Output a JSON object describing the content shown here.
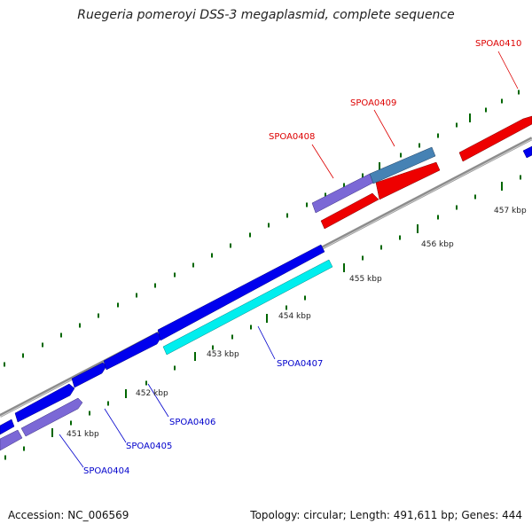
{
  "title": "Ruegeria pomeroyi DSS-3 megaplasmid, complete sequence",
  "footer": {
    "accession": "Accession: NC_006569",
    "summary": "Topology: circular; Length: 491,611 bp; Genes: 444"
  },
  "kbp_labels": [
    "451 kbp",
    "452 kbp",
    "453 kbp",
    "454 kbp",
    "455 kbp",
    "456 kbp",
    "457 kbp"
  ],
  "gene_labels": [
    {
      "name": "SPOA0404",
      "color": "#0000cc"
    },
    {
      "name": "SPOA0405",
      "color": "#0000cc"
    },
    {
      "name": "SPOA0406",
      "color": "#0000cc"
    },
    {
      "name": "SPOA0407",
      "color": "#0000cc"
    },
    {
      "name": "SPOA0408",
      "color": "#dd0000"
    },
    {
      "name": "SPOA0409",
      "color": "#dd0000"
    },
    {
      "name": "SPOA0410",
      "color": "#dd0000"
    }
  ],
  "colors": {
    "backbone": "#808080",
    "forward_gene": "#0000ee",
    "reverse_gene": "#ee0000",
    "cyan_gene": "#00eeee",
    "purple_gene": "#7b68d6",
    "steelblue_gene": "#4682b4",
    "tick": "#006600"
  }
}
